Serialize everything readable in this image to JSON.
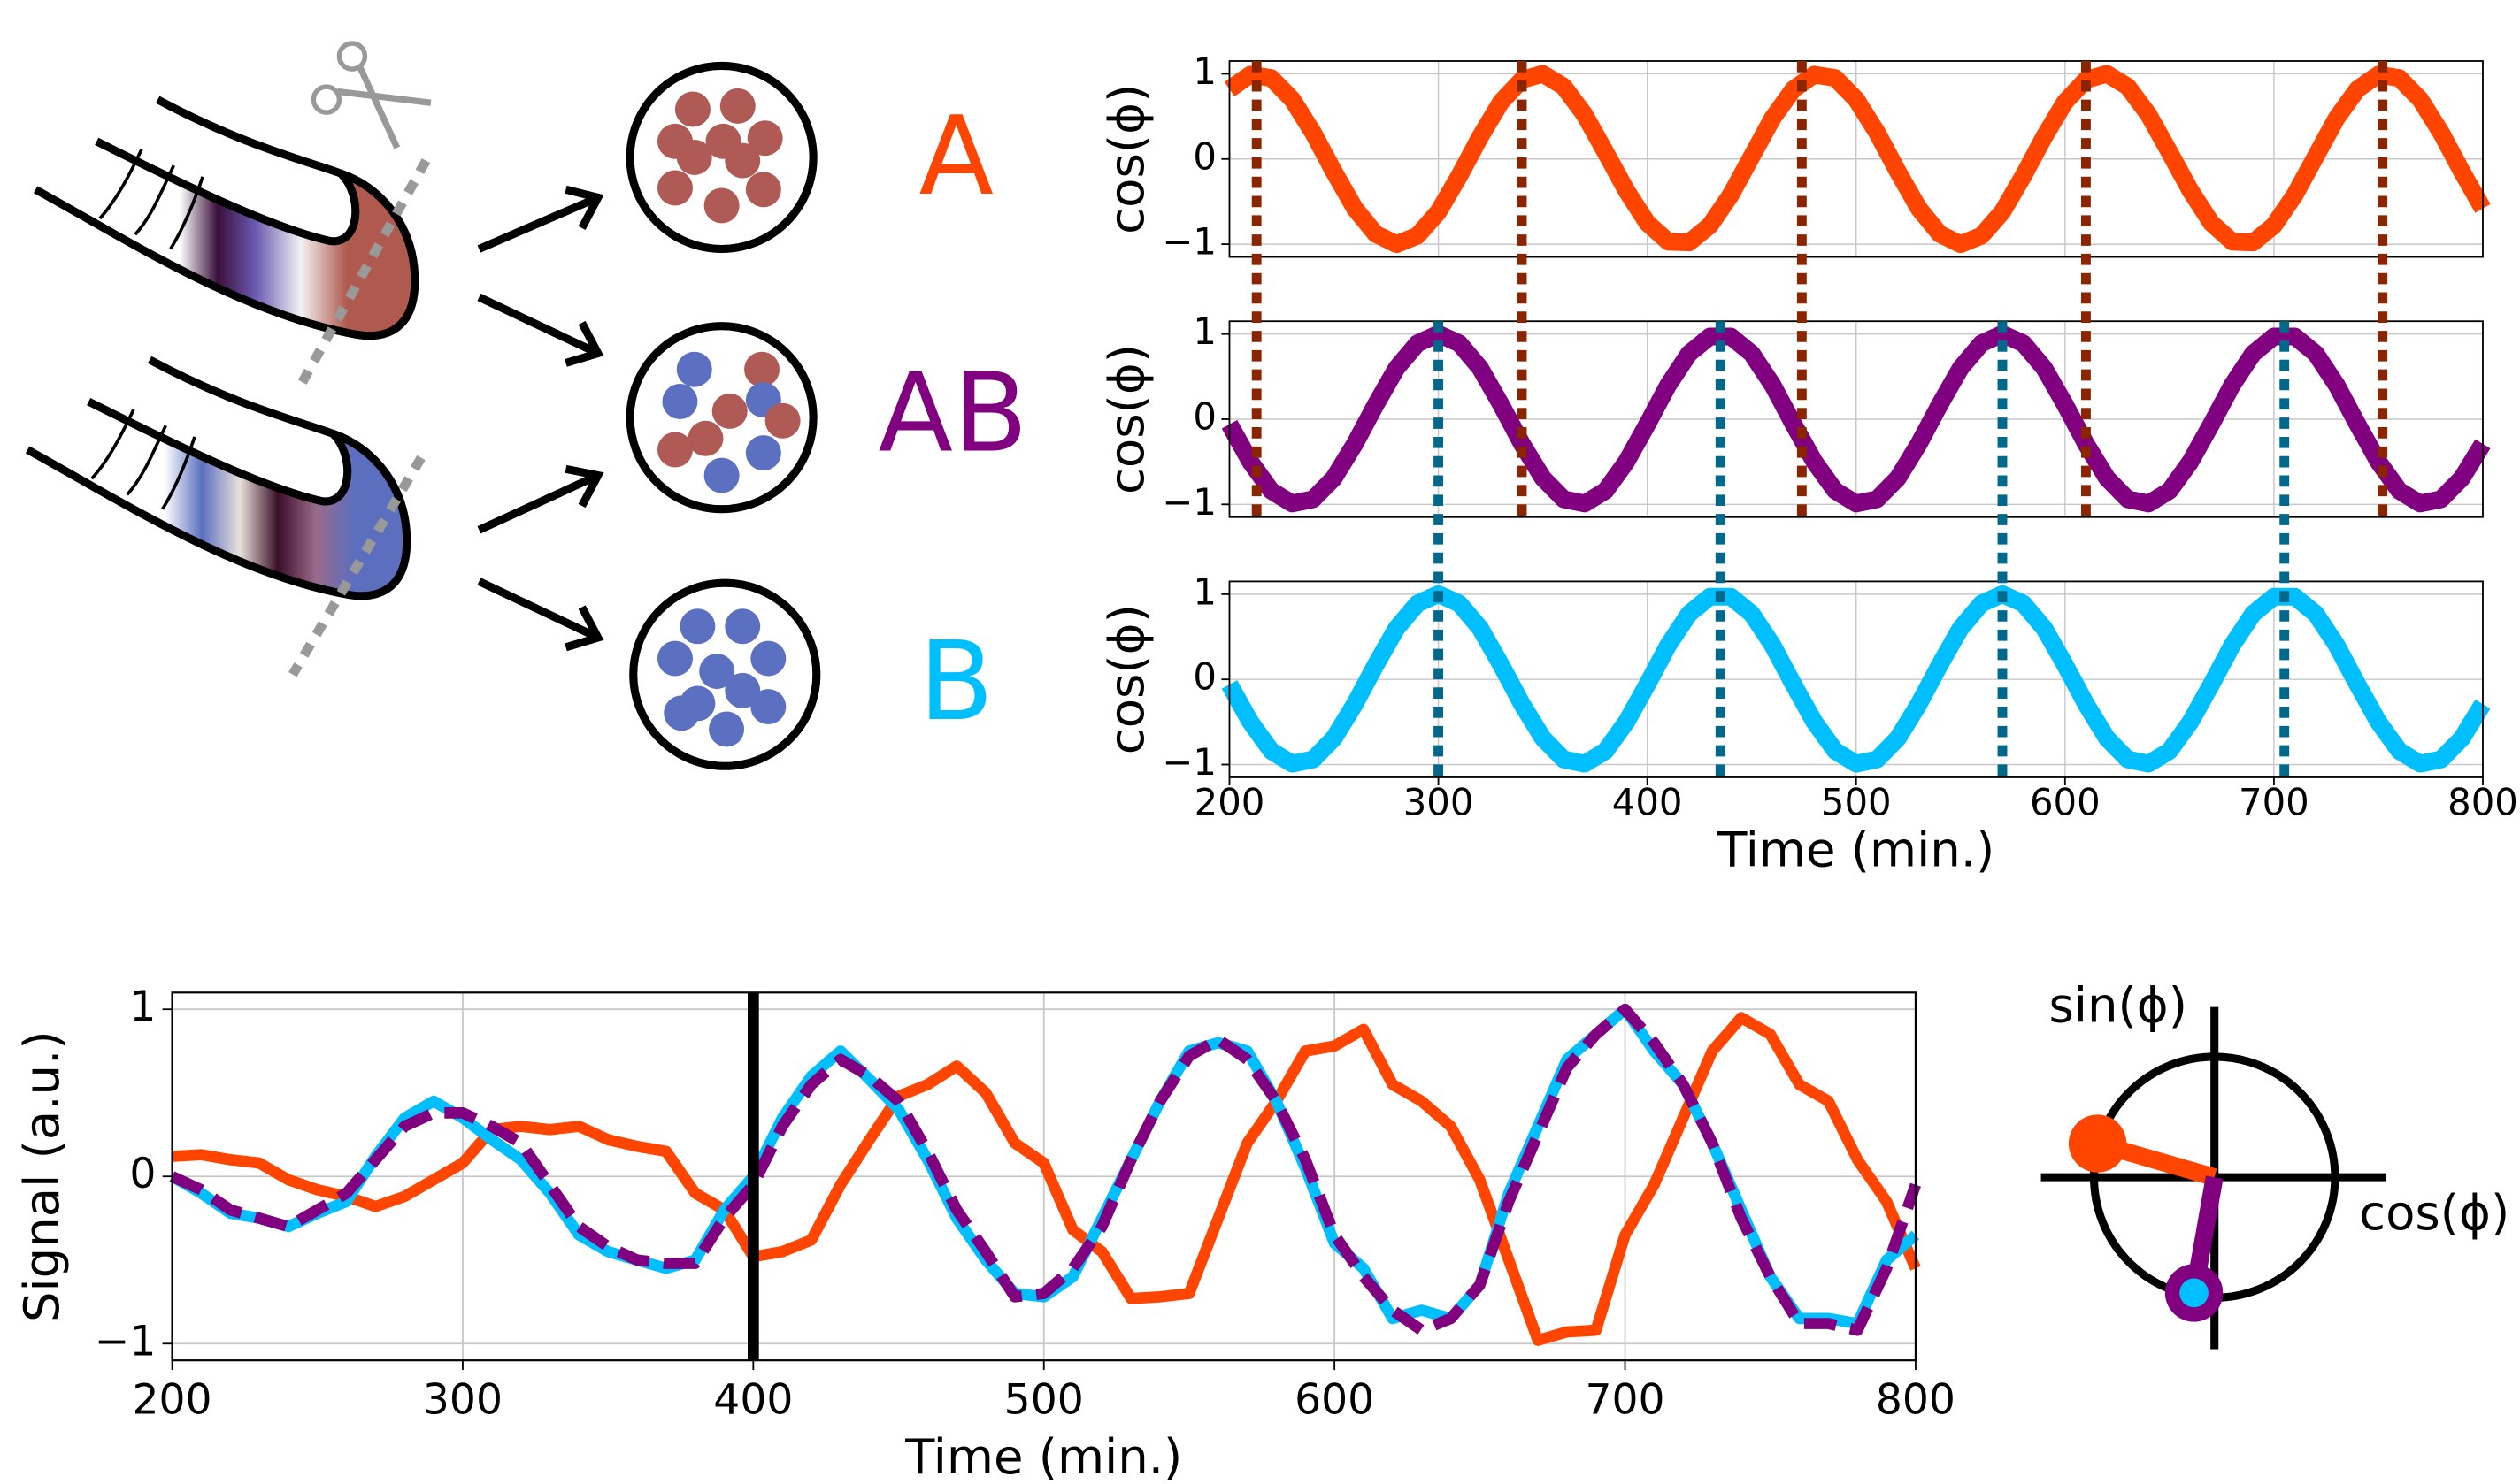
{
  "diagram": {
    "labels": [
      {
        "text": "A",
        "color": "#ff4500"
      },
      {
        "text": "AB",
        "color": "#800080"
      },
      {
        "text": "B",
        "color": "#00bfff"
      }
    ]
  },
  "chart_data": [
    {
      "type": "line-stack",
      "x": [
        200,
        210,
        220,
        230,
        240,
        250,
        260,
        270,
        280,
        290,
        300,
        310,
        320,
        330,
        340,
        350,
        360,
        370,
        380,
        390,
        400,
        410,
        420,
        430,
        440,
        450,
        460,
        470,
        480,
        490,
        500,
        510,
        520,
        530,
        540,
        550,
        560,
        570,
        580,
        590,
        600,
        610,
        620,
        630,
        640,
        650,
        660,
        670,
        680,
        690,
        700,
        710,
        720,
        730,
        740,
        750,
        760,
        770,
        780,
        790,
        800
      ],
      "xlim": [
        200,
        800
      ],
      "xticks": [
        200,
        300,
        400,
        500,
        600,
        700,
        800
      ],
      "xlabel": "Time (min.)",
      "ylim": [
        -1.15,
        1.15
      ],
      "yticks": [
        {
          "value": -1,
          "label": "−1"
        },
        0,
        1
      ],
      "grid": true,
      "panels": [
        {
          "ylabel": "cos(ϕ)",
          "color": "#ff4500",
          "values": [
            0.82,
            0.99,
            0.95,
            0.7,
            0.31,
            -0.15,
            -0.58,
            -0.88,
            -1,
            -0.9,
            -0.62,
            -0.2,
            0.26,
            0.67,
            0.93,
            1,
            0.85,
            0.52,
            0.08,
            -0.37,
            -0.75,
            -0.97,
            -0.98,
            -0.78,
            -0.42,
            0.03,
            0.48,
            0.82,
            0.99,
            0.95,
            0.7,
            0.31,
            -0.15,
            -0.58,
            -0.88,
            -1,
            -0.9,
            -0.62,
            -0.2,
            0.26,
            0.67,
            0.93,
            1,
            0.85,
            0.52,
            0.08,
            -0.37,
            -0.75,
            -0.97,
            -0.98,
            -0.78,
            -0.42,
            0.03,
            0.48,
            0.82,
            0.99,
            0.95,
            0.7,
            0.31,
            -0.15,
            -0.58
          ]
        },
        {
          "ylabel": "cos(ϕ)",
          "color": "#800080",
          "values": [
            -0.06,
            -0.5,
            -0.84,
            -0.99,
            -0.94,
            -0.69,
            -0.29,
            0.17,
            0.6,
            0.89,
            1,
            0.89,
            0.6,
            0.17,
            -0.29,
            -0.69,
            -0.94,
            -0.99,
            -0.84,
            -0.5,
            -0.06,
            0.4,
            0.77,
            0.97,
            0.97,
            0.77,
            0.4,
            -0.06,
            -0.5,
            -0.84,
            -0.99,
            -0.94,
            -0.69,
            -0.29,
            0.17,
            0.6,
            0.89,
            1,
            0.89,
            0.6,
            0.17,
            -0.29,
            -0.69,
            -0.94,
            -0.99,
            -0.84,
            -0.5,
            -0.06,
            0.4,
            0.77,
            0.97,
            0.97,
            0.77,
            0.4,
            -0.06,
            -0.5,
            -0.84,
            -0.99,
            -0.94,
            -0.69,
            -0.29
          ]
        },
        {
          "ylabel": "cos(ϕ)",
          "color": "#00bfff",
          "values": [
            -0.06,
            -0.5,
            -0.84,
            -0.99,
            -0.94,
            -0.69,
            -0.29,
            0.17,
            0.6,
            0.89,
            1,
            0.89,
            0.6,
            0.17,
            -0.29,
            -0.69,
            -0.94,
            -0.99,
            -0.84,
            -0.5,
            -0.06,
            0.4,
            0.77,
            0.97,
            0.97,
            0.77,
            0.4,
            -0.06,
            -0.5,
            -0.84,
            -0.99,
            -0.94,
            -0.69,
            -0.29,
            0.17,
            0.6,
            0.89,
            1,
            0.89,
            0.6,
            0.17,
            -0.29,
            -0.69,
            -0.94,
            -0.99,
            -0.84,
            -0.5,
            -0.06,
            0.4,
            0.77,
            0.97,
            0.97,
            0.77,
            0.4,
            -0.06,
            -0.5,
            -0.84,
            -0.99,
            -0.94,
            -0.69,
            -0.29
          ]
        }
      ],
      "peak_lines": [
        {
          "color": "#8b2500",
          "x": [
            213,
            340,
            474,
            610,
            752
          ]
        },
        {
          "color": "#00688b",
          "x": [
            300,
            435,
            570,
            705
          ]
        }
      ]
    },
    {
      "type": "line",
      "x": [
        200,
        210,
        220,
        230,
        240,
        250,
        260,
        270,
        280,
        290,
        300,
        310,
        320,
        330,
        340,
        350,
        360,
        370,
        380,
        390,
        400,
        410,
        420,
        430,
        440,
        450,
        460,
        470,
        480,
        490,
        500,
        510,
        520,
        530,
        540,
        550,
        560,
        570,
        580,
        590,
        600,
        610,
        620,
        630,
        640,
        650,
        660,
        670,
        680,
        690,
        700,
        710,
        720,
        730,
        740,
        750,
        760,
        770,
        780,
        790,
        800
      ],
      "xlim": [
        200,
        800
      ],
      "xticks": [
        200,
        300,
        400,
        500,
        600,
        700,
        800
      ],
      "xlabel": "Time (min.)",
      "ylabel": "Signal (a.u.)",
      "ylim": [
        -1.1,
        1.1
      ],
      "yticks": [
        {
          "value": -1,
          "label": "−1"
        },
        0,
        1
      ],
      "grid": true,
      "vline": 400,
      "series": [
        {
          "color": "#ff4500",
          "dash": false,
          "values": [
            0.12,
            0.13,
            0.1,
            0.08,
            -0.02,
            -0.08,
            -0.12,
            -0.18,
            -0.12,
            -0.02,
            0.08,
            0.28,
            0.3,
            0.28,
            0.3,
            0.22,
            0.18,
            0.15,
            -0.1,
            -0.2,
            -0.48,
            -0.45,
            -0.38,
            -0.05,
            0.22,
            0.48,
            0.55,
            0.66,
            0.5,
            0.2,
            0.08,
            -0.32,
            -0.45,
            -0.73,
            -0.72,
            -0.7,
            -0.25,
            0.2,
            0.45,
            0.75,
            0.78,
            0.88,
            0.55,
            0.45,
            0.3,
            -0.02,
            -0.5,
            -0.98,
            -0.93,
            -0.92,
            -0.35,
            -0.05,
            0.35,
            0.75,
            0.95,
            0.85,
            0.55,
            0.45,
            0.1,
            -0.15,
            -0.55
          ]
        },
        {
          "color": "#00bfff",
          "dash": false,
          "values": [
            0,
            -0.1,
            -0.22,
            -0.25,
            -0.3,
            -0.22,
            -0.15,
            0.12,
            0.35,
            0.45,
            0.35,
            0.22,
            0.1,
            -0.1,
            -0.35,
            -0.45,
            -0.5,
            -0.55,
            -0.5,
            -0.2,
            0,
            0.35,
            0.6,
            0.75,
            0.58,
            0.4,
            0.1,
            -0.25,
            -0.5,
            -0.7,
            -0.72,
            -0.6,
            -0.25,
            0.1,
            0.45,
            0.75,
            0.8,
            0.75,
            0.45,
            0.05,
            -0.4,
            -0.55,
            -0.85,
            -0.8,
            -0.85,
            -0.65,
            -0.1,
            0.3,
            0.7,
            0.85,
            1,
            0.75,
            0.55,
            0.2,
            -0.2,
            -0.6,
            -0.85,
            -0.85,
            -0.88,
            -0.5,
            -0.35
          ]
        },
        {
          "color": "#800080",
          "dash": true,
          "values": [
            0,
            -0.08,
            -0.2,
            -0.25,
            -0.3,
            -0.2,
            -0.1,
            0.1,
            0.3,
            0.38,
            0.38,
            0.3,
            0.2,
            -0.05,
            -0.3,
            -0.42,
            -0.5,
            -0.52,
            -0.52,
            -0.25,
            -0.05,
            0.3,
            0.55,
            0.7,
            0.6,
            0.45,
            0.15,
            -0.2,
            -0.45,
            -0.72,
            -0.7,
            -0.55,
            -0.3,
            0.1,
            0.45,
            0.72,
            0.82,
            0.7,
            0.45,
            0.1,
            -0.35,
            -0.6,
            -0.8,
            -0.92,
            -0.85,
            -0.65,
            -0.15,
            0.25,
            0.65,
            0.85,
            1,
            0.8,
            0.55,
            0.2,
            -0.25,
            -0.6,
            -0.88,
            -0.88,
            -0.92,
            -0.55,
            -0.05
          ]
        }
      ]
    },
    {
      "type": "phase",
      "xlabel": "cos(ϕ)",
      "ylabel": "sin(ϕ)",
      "vectors": [
        {
          "color": "#ff4500",
          "cos": -0.97,
          "sin": 0.28
        },
        {
          "color": "#800080",
          "inner_color": "#00bfff",
          "cos": -0.17,
          "sin": -0.96
        }
      ]
    }
  ]
}
